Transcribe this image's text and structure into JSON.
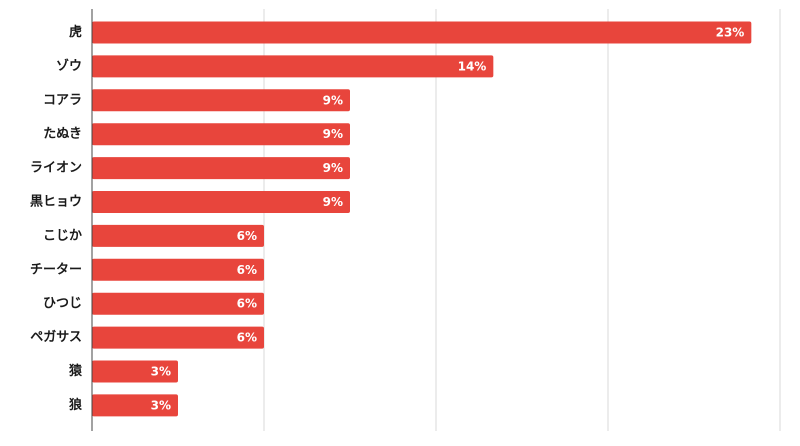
{
  "chart_data": {
    "type": "bar",
    "orientation": "horizontal",
    "categories": [
      "虎",
      "ゾウ",
      "コアラ",
      "たぬき",
      "ライオン",
      "黒ヒョウ",
      "こじか",
      "チーター",
      "ひつじ",
      "ペガサス",
      "猿",
      "狼"
    ],
    "values": [
      23,
      14,
      9,
      9,
      9,
      9,
      6,
      6,
      6,
      6,
      3,
      3
    ],
    "value_labels": [
      "23%",
      "14%",
      "9%",
      "9%",
      "9%",
      "9%",
      "6%",
      "6%",
      "6%",
      "6%",
      "3%",
      "3%"
    ],
    "xlim": [
      0,
      24
    ],
    "grid_values": [
      0,
      6,
      12,
      18,
      24
    ],
    "grid": true,
    "title": "",
    "xlabel": "",
    "ylabel": "",
    "bar_color": "#E8453C",
    "grid_color": "#d9d9d9",
    "axis_color": "#444444"
  }
}
